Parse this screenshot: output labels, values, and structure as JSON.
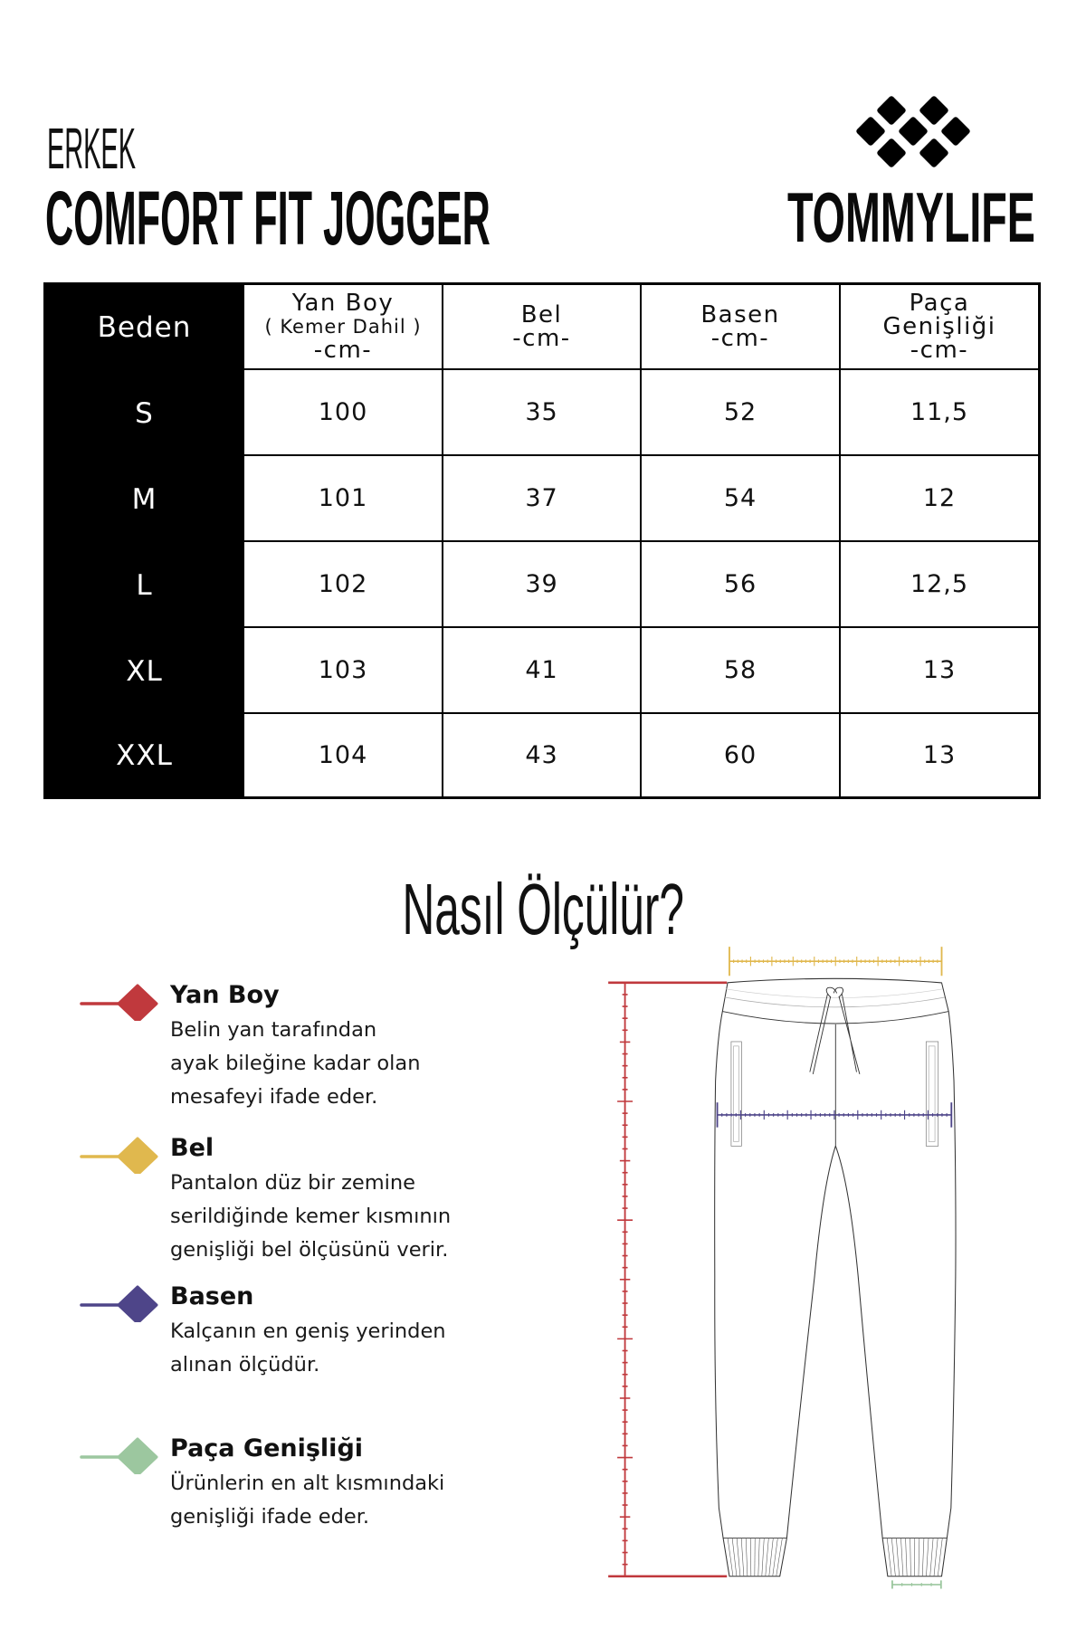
{
  "header": {
    "category": "ERKEK",
    "title": "COMFORT FIT JOGGER"
  },
  "brand": {
    "name": "TOMMYLIFE",
    "logo_icon": "diamond-grid-logo"
  },
  "size_table": {
    "size_header": "Beden",
    "columns": [
      {
        "line1": "Yan Boy",
        "line2": "( Kemer Dahil )",
        "line3": "-cm-"
      },
      {
        "line1": "Bel",
        "line2": "-cm-"
      },
      {
        "line1": "Basen",
        "line2": "-cm-"
      },
      {
        "line1": "Paça",
        "line2": "Genişliği",
        "line3": "-cm-"
      }
    ],
    "rows": [
      {
        "size": "S",
        "values": [
          "100",
          "35",
          "52",
          "11,5"
        ]
      },
      {
        "size": "M",
        "values": [
          "101",
          "37",
          "54",
          "12"
        ]
      },
      {
        "size": "L",
        "values": [
          "102",
          "39",
          "56",
          "12,5"
        ]
      },
      {
        "size": "XL",
        "values": [
          "103",
          "41",
          "58",
          "13"
        ]
      },
      {
        "size": "XXL",
        "values": [
          "104",
          "43",
          "60",
          "13"
        ]
      }
    ]
  },
  "how_to_measure": {
    "title": "Nasıl Ölçülür?",
    "items": [
      {
        "title": "Yan Boy",
        "color": "#c0393d",
        "description": [
          "Belin yan tarafından",
          "ayak bileğine kadar olan",
          "mesafeyi ifade eder."
        ]
      },
      {
        "title": "Bel",
        "color": "#e0b84e",
        "description": [
          "Pantalon düz bir zemine",
          "serildiğinde kemer kısmının",
          "genişliği bel ölçüsünü verir."
        ]
      },
      {
        "title": "Basen",
        "color": "#4e4589",
        "description": [
          "Kalçanın en geniş yerinden",
          "alınan ölçüdür."
        ]
      },
      {
        "title": "Paça Genişliği",
        "color": "#9cc79f",
        "description": [
          "Ürünlerin en alt kısmındaki",
          "genişliği ifade eder."
        ]
      }
    ]
  },
  "illustration": {
    "icon": "jogger-pants-measurement-diagram",
    "outline_color": "#333333"
  }
}
